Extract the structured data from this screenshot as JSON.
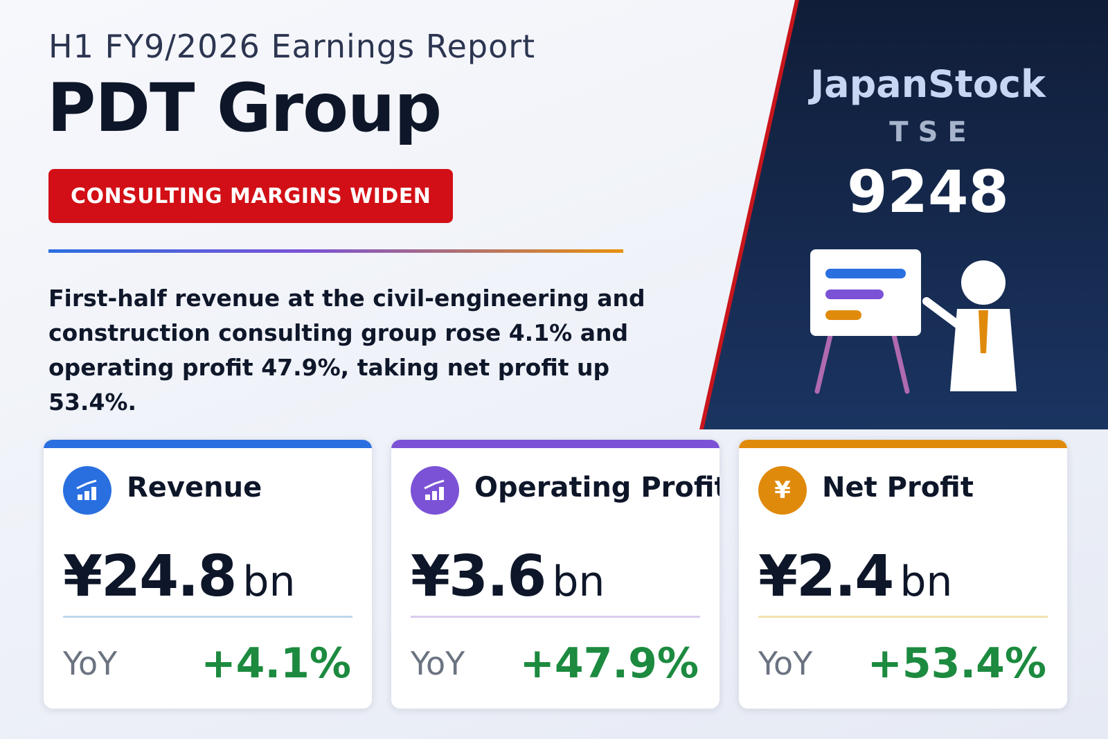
{
  "header": {
    "kicker": "H1 FY9/2026 Earnings Report",
    "company": "PDT Group",
    "tag": "CONSULTING MARGINS WIDEN",
    "summary": "First-half revenue at the civil-engineering and construction consulting group rose 4.1% and operating profit 47.9%, taking net profit up 53.4%."
  },
  "ticker": {
    "brand": "JapanStock",
    "exchange": "TSE",
    "code": "9248"
  },
  "colors": {
    "revenue": "#2a6fe0",
    "operating": "#7b52d6",
    "net": "#e08a0c",
    "tag": "#d20f16",
    "positive": "#1c8a3f"
  },
  "cards": [
    {
      "label": "Revenue",
      "value": "¥24.8",
      "unit": "bn",
      "yoy_label": "YoY",
      "yoy": "+4.1%",
      "icon": "bar-chart-up-icon"
    },
    {
      "label": "Operating Profit",
      "value": "¥3.6",
      "unit": "bn",
      "yoy_label": "YoY",
      "yoy": "+47.9%",
      "icon": "bar-chart-up-icon"
    },
    {
      "label": "Net Profit",
      "value": "¥2.4",
      "unit": "bn",
      "yoy_label": "YoY",
      "yoy": "+53.4%",
      "icon": "yen-icon",
      "icon_glyph": "¥"
    }
  ]
}
